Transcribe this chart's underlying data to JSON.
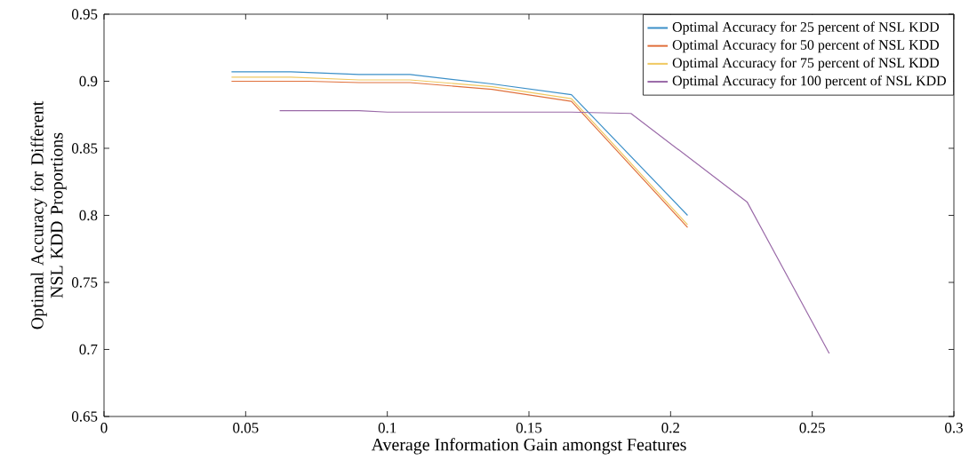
{
  "chart_data": {
    "type": "line",
    "xlabel": "Average Information Gain amongst Features",
    "ylabel": "Optimal Accuracy for Different NSL KDD Proportions",
    "xlim": [
      0,
      0.3
    ],
    "xticks": [
      0,
      0.05,
      0.1,
      0.15,
      0.2,
      0.25,
      0.3
    ],
    "ylim": [
      0.65,
      0.95
    ],
    "yticks": [
      0.65,
      0.7,
      0.75,
      0.8,
      0.85,
      0.9,
      0.95
    ],
    "grid": false,
    "legend": "top right",
    "marker": "none",
    "line_style": "solid",
    "series": [
      {
        "name": "Optimal Accuracy for 25 percent of NSL KDD",
        "color": "#3b8fc8",
        "x": [
          0.045,
          0.066,
          0.09,
          0.108,
          0.137,
          0.165,
          0.206
        ],
        "values": [
          0.907,
          0.907,
          0.905,
          0.905,
          0.898,
          0.89,
          0.8
        ]
      },
      {
        "name": "Optimal Accuracy for 50 percent of NSL KDD",
        "color": "#e0703c",
        "x": [
          0.045,
          0.072,
          0.09,
          0.108,
          0.137,
          0.165,
          0.206
        ],
        "values": [
          0.9,
          0.9,
          0.899,
          0.899,
          0.894,
          0.885,
          0.791
        ]
      },
      {
        "name": "Optimal Accuracy for 75 percent of NSL KDD",
        "color": "#f0c860",
        "x": [
          0.045,
          0.066,
          0.09,
          0.108,
          0.137,
          0.165,
          0.206
        ],
        "values": [
          0.903,
          0.903,
          0.901,
          0.901,
          0.896,
          0.887,
          0.793
        ]
      },
      {
        "name": "Optimal Accuracy for 100 percent of NSL KDD",
        "color": "#9a6aa8",
        "x": [
          0.062,
          0.09,
          0.1,
          0.165,
          0.186,
          0.227,
          0.256
        ],
        "values": [
          0.878,
          0.878,
          0.877,
          0.877,
          0.876,
          0.81,
          0.697
        ]
      }
    ]
  }
}
